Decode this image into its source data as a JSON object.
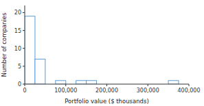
{
  "chart_data": {
    "type": "histogram",
    "xlabel": "Portfolio value ($ thousands)",
    "ylabel": "Number of companies",
    "bins": [
      0,
      25000,
      50000,
      75000,
      100000,
      125000,
      150000,
      175000,
      200000,
      225000,
      250000,
      275000,
      300000,
      325000,
      350000,
      375000
    ],
    "values": [
      19,
      7,
      0,
      1,
      0,
      1,
      1,
      0,
      0,
      0,
      0,
      0,
      0,
      0,
      1
    ],
    "color": "#5b9bd5",
    "xlim": [
      0,
      400000
    ],
    "ylim": [
      0,
      22
    ],
    "xticks": [
      0,
      {
        "value": 100000,
        "label": "100,000"
      },
      {
        "value": 200000,
        "label": "200,000"
      },
      {
        "value": 300000,
        "label": "300,000"
      },
      {
        "value": 400000,
        "label": "400,000"
      }
    ],
    "yticks": [
      0,
      5,
      10,
      15,
      20
    ],
    "grid": false
  }
}
